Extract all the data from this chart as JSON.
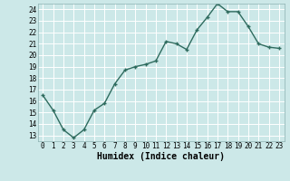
{
  "x": [
    0,
    1,
    2,
    3,
    4,
    5,
    6,
    7,
    8,
    9,
    10,
    11,
    12,
    13,
    14,
    15,
    16,
    17,
    18,
    19,
    20,
    21,
    22,
    23
  ],
  "y": [
    16.5,
    15.2,
    13.5,
    12.8,
    13.5,
    15.2,
    15.8,
    17.5,
    18.7,
    19.0,
    19.2,
    19.5,
    21.2,
    21.0,
    20.5,
    22.2,
    23.3,
    24.5,
    23.8,
    23.8,
    22.5,
    21.0,
    20.7,
    20.6
  ],
  "line_color": "#2e6b5e",
  "marker": "+",
  "marker_color": "#2e6b5e",
  "bg_color": "#cce8e8",
  "grid_color": "#ffffff",
  "grid_minor_color": "#e0f0f0",
  "xlabel": "Humidex (Indice chaleur)",
  "xlabel_fontsize": 7,
  "xlim": [
    -0.5,
    23.5
  ],
  "ylim": [
    12.5,
    24.5
  ],
  "yticks": [
    13,
    14,
    15,
    16,
    17,
    18,
    19,
    20,
    21,
    22,
    23,
    24
  ],
  "xticks": [
    0,
    1,
    2,
    3,
    4,
    5,
    6,
    7,
    8,
    9,
    10,
    11,
    12,
    13,
    14,
    15,
    16,
    17,
    18,
    19,
    20,
    21,
    22,
    23
  ],
  "tick_fontsize": 5.5,
  "linewidth": 1.0,
  "markersize": 3.5,
  "spine_color": "#8cb0b0"
}
